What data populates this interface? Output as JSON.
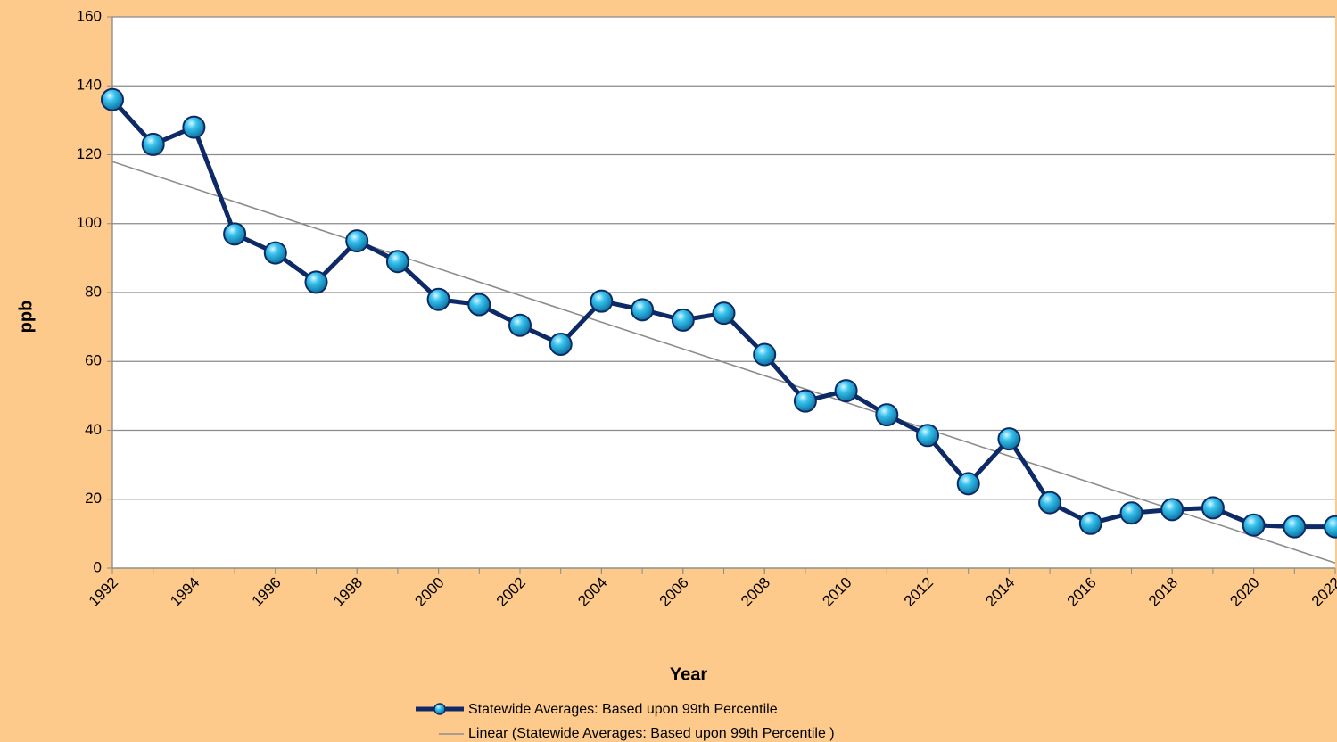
{
  "chart_data": {
    "type": "line",
    "x_label": "Year",
    "y_label": "ppb",
    "x": [
      1992,
      1993,
      1994,
      1995,
      1996,
      1997,
      1998,
      1999,
      2000,
      2001,
      2002,
      2003,
      2004,
      2005,
      2006,
      2007,
      2008,
      2009,
      2010,
      2011,
      2012,
      2013,
      2014,
      2015,
      2016,
      2017,
      2018,
      2019,
      2020,
      2021,
      2022
    ],
    "series": [
      {
        "name": "Statewide Averages: Based upon 99th Percentile",
        "color": "#0d2a66",
        "values": [
          136,
          123,
          128,
          97,
          91.5,
          83,
          95,
          89,
          78,
          76.5,
          70.5,
          65,
          77.5,
          75,
          72,
          74,
          62,
          48.5,
          51.5,
          44.5,
          38.5,
          24.5,
          37.5,
          19,
          13,
          16,
          17,
          17.5,
          12.5,
          12,
          12
        ]
      }
    ],
    "trendline": {
      "name": "Linear (Statewide Averages: Based upon 99th Percentile )",
      "color": "#8c8c8c",
      "x": [
        1992,
        2022
      ],
      "values": [
        118,
        1.5
      ]
    },
    "xlim": [
      1992,
      2022
    ],
    "xticks": [
      1992,
      1994,
      1996,
      1998,
      2000,
      2002,
      2004,
      2006,
      2008,
      2010,
      2012,
      2014,
      2016,
      2018,
      2020,
      2022
    ],
    "ylim": [
      0,
      160
    ],
    "yticks": [
      0,
      20,
      40,
      60,
      80,
      100,
      120,
      140,
      160
    ],
    "grid": true
  }
}
